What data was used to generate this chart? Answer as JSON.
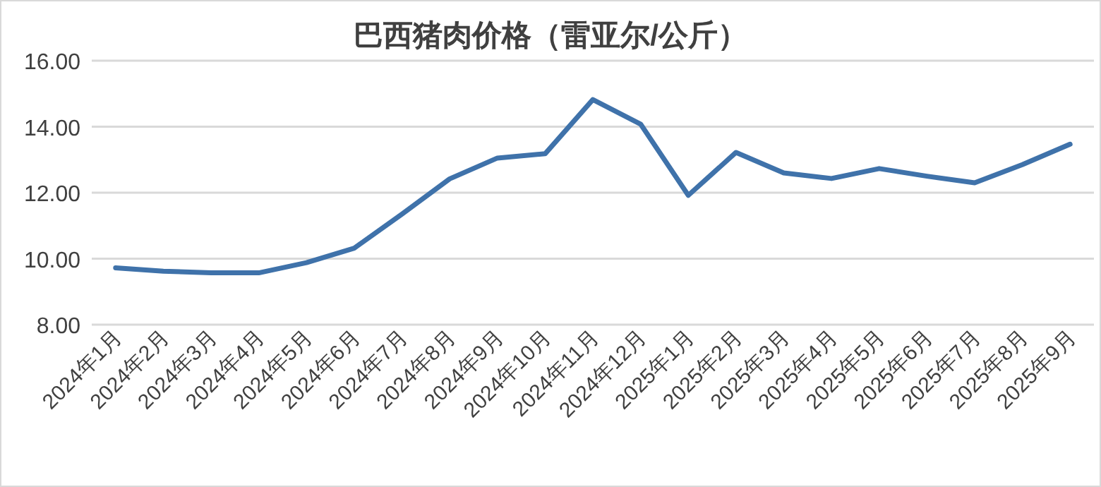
{
  "chart_data": {
    "type": "line",
    "title": "巴西猪肉价格（雷亚尔/公斤）",
    "categories": [
      "2024年1月",
      "2024年2月",
      "2024年3月",
      "2024年4月",
      "2024年5月",
      "2024年6月",
      "2024年7月",
      "2024年8月",
      "2024年9月",
      "2024年10月",
      "2024年11月",
      "2024年12月",
      "2025年1月",
      "2025年2月",
      "2025年3月",
      "2025年4月",
      "2025年5月",
      "2025年6月",
      "2025年7月",
      "2025年8月",
      "2025年9月"
    ],
    "series": [
      {
        "color": "#3f72aa",
        "values": [
          9.72,
          9.62,
          9.57,
          9.57,
          9.88,
          10.32,
          11.35,
          12.42,
          13.05,
          13.18,
          14.82,
          14.08,
          11.92,
          13.22,
          12.6,
          12.43,
          12.73,
          12.5,
          12.3,
          12.85,
          13.47
        ]
      }
    ],
    "ylim": [
      8,
      16
    ],
    "yticks": [
      {
        "value": 8,
        "label": "8.00"
      },
      {
        "value": 10,
        "label": "10.00"
      },
      {
        "value": 12,
        "label": "12.00"
      },
      {
        "value": 14,
        "label": "14.00"
      },
      {
        "value": 16,
        "label": "16.00"
      }
    ],
    "grid": "y",
    "marker": "none",
    "line_style": "solid"
  }
}
